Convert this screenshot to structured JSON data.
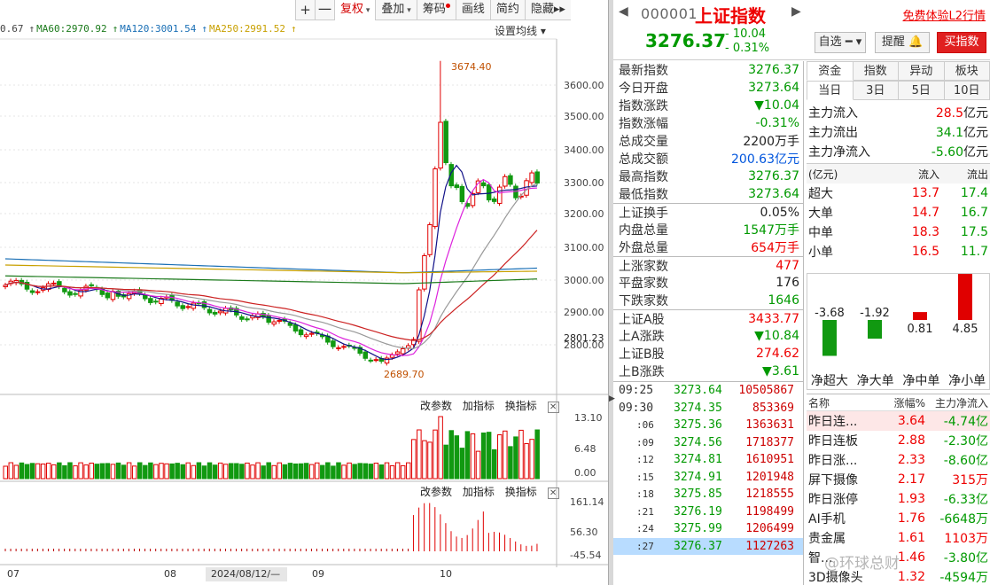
{
  "toolbar": {
    "plus": "+",
    "minus": "一",
    "items": [
      "复权",
      "叠加",
      "筹码",
      "画线",
      "简约",
      "隐藏"
    ],
    "more": "▸▸"
  },
  "ma_legend": [
    {
      "label": "0.67",
      "color": "#444444"
    },
    {
      "label": "MA60:2970.92",
      "color": "#1b7a1b"
    },
    {
      "label": "MA120:3001.54",
      "color": "#1a6fb5"
    },
    {
      "label": "MA250:2991.52",
      "color": "#c8a000"
    }
  ],
  "ma_settings": "设置均线",
  "price_axis": [
    "3600.00",
    "3500.00",
    "3400.00",
    "3300.00",
    "3200.00",
    "3100.00",
    "3000.00",
    "2900.00",
    "2801.23",
    "2800.00"
  ],
  "annot_high": "3674.40",
  "annot_low": "2689.70",
  "vol_tools": [
    "改参数",
    "加指标",
    "换指标"
  ],
  "vol_axis": [
    "13.10",
    "6.48",
    "0.00"
  ],
  "macd_tools": [
    "改参数",
    "加指标",
    "换指标"
  ],
  "macd_axis": [
    "161.14",
    "56.30",
    "-45.54"
  ],
  "date_axis": [
    "07",
    "08",
    "2024/08/12/—",
    "09",
    "10"
  ],
  "header": {
    "code": "000001",
    "name": "上证指数",
    "promo": "免费体验L2行情",
    "price": "3276.37",
    "change": "- 10.04",
    "change_pct": "- 0.31%",
    "btn_watch": "自选",
    "btn_alert": "提醒",
    "btn_buy": "买指数"
  },
  "quote": [
    {
      "label": "最新指数",
      "value": "3276.37",
      "color": "green"
    },
    {
      "label": "今日开盘",
      "value": "3273.64",
      "color": "green"
    },
    {
      "label": "指数涨跌",
      "value": "▼10.04",
      "color": "green"
    },
    {
      "label": "指数涨幅",
      "value": "-0.31%",
      "color": "green"
    },
    {
      "label": "总成交量",
      "value": "2200万手",
      "color": "dark"
    },
    {
      "label": "总成交额",
      "value": "200.63亿元",
      "color": "blue"
    },
    {
      "label": "最高指数",
      "value": "3276.37",
      "color": "green"
    },
    {
      "label": "最低指数",
      "value": "3273.64",
      "color": "green"
    },
    {
      "label": "上证换手",
      "value": "0.05%",
      "color": "dark",
      "sep": true
    },
    {
      "label": "内盘总量",
      "value": "1547万手",
      "color": "green"
    },
    {
      "label": "外盘总量",
      "value": "654万手",
      "color": "red"
    },
    {
      "label": "上涨家数",
      "value": "477",
      "color": "red",
      "sep": true
    },
    {
      "label": "平盘家数",
      "value": "176",
      "color": "dark"
    },
    {
      "label": "下跌家数",
      "value": "1646",
      "color": "green"
    },
    {
      "label": "上证A股",
      "value": "3433.77",
      "color": "red",
      "sep": true
    },
    {
      "label": "上A涨跌",
      "value": "▼10.84",
      "color": "green"
    },
    {
      "label": "上证B股",
      "value": "274.62",
      "color": "red"
    },
    {
      "label": "上B涨跌",
      "value": "▼3.61",
      "color": "green"
    }
  ],
  "ticks": [
    {
      "time": "09:25",
      "price": "3273.64",
      "vol": "10505867",
      "small": false
    },
    {
      "time": "09:30",
      "price": "3274.35",
      "vol": "853369",
      "small": false
    },
    {
      "time": ":06",
      "price": "3275.36",
      "vol": "1363631",
      "small": true
    },
    {
      "time": ":09",
      "price": "3274.56",
      "vol": "1718377",
      "small": true
    },
    {
      "time": ":12",
      "price": "3274.81",
      "vol": "1610951",
      "small": true
    },
    {
      "time": ":15",
      "price": "3274.91",
      "vol": "1201948",
      "small": true
    },
    {
      "time": ":18",
      "price": "3275.85",
      "vol": "1218555",
      "small": true
    },
    {
      "time": ":21",
      "price": "3276.19",
      "vol": "1198499",
      "small": true
    },
    {
      "time": ":24",
      "price": "3275.99",
      "vol": "1206499",
      "small": true
    },
    {
      "time": ":27",
      "price": "3276.37",
      "vol": "1127263",
      "small": true,
      "selected": true
    }
  ],
  "fund": {
    "tabs1": [
      "资金",
      "指数",
      "异动",
      "板块"
    ],
    "tabs2": [
      "当日",
      "3日",
      "5日",
      "10日"
    ],
    "rows": [
      {
        "label": "主力流入",
        "value": "28.5",
        "unit": "亿元",
        "color": "red"
      },
      {
        "label": "主力流出",
        "value": "34.1",
        "unit": "亿元",
        "color": "green"
      },
      {
        "label": "主力净流入",
        "value": "-5.60",
        "unit": "亿元",
        "color": "green"
      }
    ],
    "grid_head": [
      "(亿元)",
      "流入",
      "流出"
    ],
    "grid": [
      {
        "label": "超大",
        "in": "13.7",
        "out": "17.4"
      },
      {
        "label": "大单",
        "in": "14.7",
        "out": "16.7"
      },
      {
        "label": "中单",
        "in": "18.3",
        "out": "17.5"
      },
      {
        "label": "小单",
        "in": "16.5",
        "out": "11.7"
      }
    ],
    "bars": [
      {
        "label": "净超大",
        "value": -3.68,
        "text": "-3.68"
      },
      {
        "label": "净大单",
        "value": -1.92,
        "text": "-1.92"
      },
      {
        "label": "净中单",
        "value": 0.81,
        "text": "0.81"
      },
      {
        "label": "净小单",
        "value": 4.85,
        "text": "4.85"
      }
    ]
  },
  "sector": {
    "head": [
      "名称",
      "涨幅%",
      "主力净流入"
    ],
    "rows": [
      {
        "name": "昨日连...",
        "rate": "3.64",
        "flow": "-4.74亿",
        "flow_color": "green",
        "selected": true
      },
      {
        "name": "昨日连板",
        "rate": "2.88",
        "flow": "-2.30亿",
        "flow_color": "green"
      },
      {
        "name": "昨日涨...",
        "rate": "2.33",
        "flow": "-8.60亿",
        "flow_color": "green"
      },
      {
        "name": "屏下摄像",
        "rate": "2.17",
        "flow": "315万",
        "flow_color": "red"
      },
      {
        "name": "昨日涨停",
        "rate": "1.93",
        "flow": "-6.33亿",
        "flow_color": "green"
      },
      {
        "name": "AI手机",
        "rate": "1.76",
        "flow": "-6648万",
        "flow_color": "green"
      },
      {
        "name": "贵金属",
        "rate": "1.61",
        "flow": "1103万",
        "flow_color": "red"
      },
      {
        "name": "智...",
        "rate": "1.46",
        "flow": "-3.80亿",
        "flow_color": "green"
      },
      {
        "name": "3D摄像头",
        "rate": "1.32",
        "flow": "-4594万",
        "flow_color": "green"
      }
    ]
  },
  "watermark": "@环球总财",
  "colors": {
    "up": "#e00000",
    "down": "#119911",
    "ma5": "#111188",
    "ma10": "#dd22dd",
    "ma20": "#999999",
    "ma30": "#cc2222",
    "ma60": "#1b7a1b",
    "ma120": "#1a6fb5",
    "ma250": "#c8a000"
  }
}
